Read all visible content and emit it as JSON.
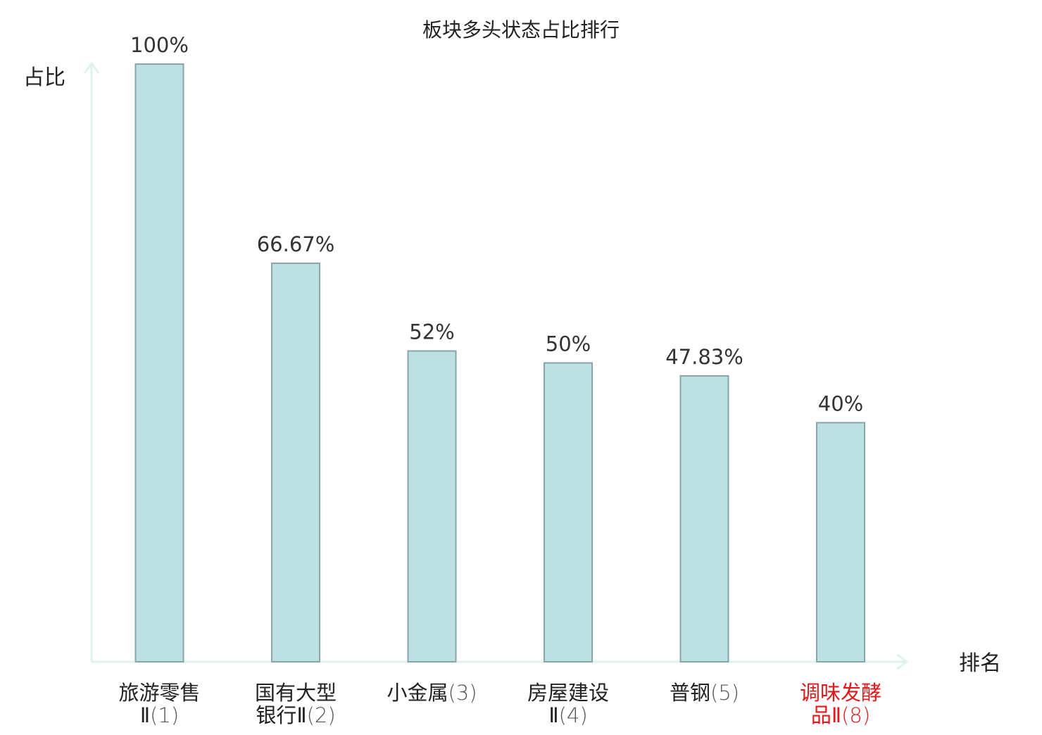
{
  "chart_data": {
    "type": "bar",
    "title": "板块多头状态占比排行",
    "ylabel": "占比",
    "xlabel": "排名",
    "ylim": [
      0,
      100
    ],
    "grid": false,
    "categories": [
      {
        "name_lines": [
          "旅游零售",
          "Ⅱ"
        ],
        "rank": "(1)",
        "highlight": false
      },
      {
        "name_lines": [
          "国有大型",
          "银行Ⅱ"
        ],
        "rank": "(2)",
        "highlight": false
      },
      {
        "name_lines": [
          "小金属"
        ],
        "rank": "(3)",
        "highlight": false
      },
      {
        "name_lines": [
          "房屋建设",
          "Ⅱ"
        ],
        "rank": "(4)",
        "highlight": false
      },
      {
        "name_lines": [
          "普钢"
        ],
        "rank": "(5)",
        "highlight": false
      },
      {
        "name_lines": [
          "调味发酵",
          "品Ⅱ"
        ],
        "rank": "(8)",
        "highlight": true
      }
    ],
    "values": [
      100,
      66.67,
      52,
      50,
      47.83,
      40
    ],
    "value_labels": [
      "100%",
      "66.67%",
      "52%",
      "50%",
      "47.83%",
      "40%"
    ]
  },
  "colors": {
    "bar_fill": "#bde0e3",
    "bar_stroke": "#86a6aa",
    "axis": "#e0f2ef",
    "text": "#222222",
    "label_text": "#333333",
    "highlight": "#e0191c"
  }
}
